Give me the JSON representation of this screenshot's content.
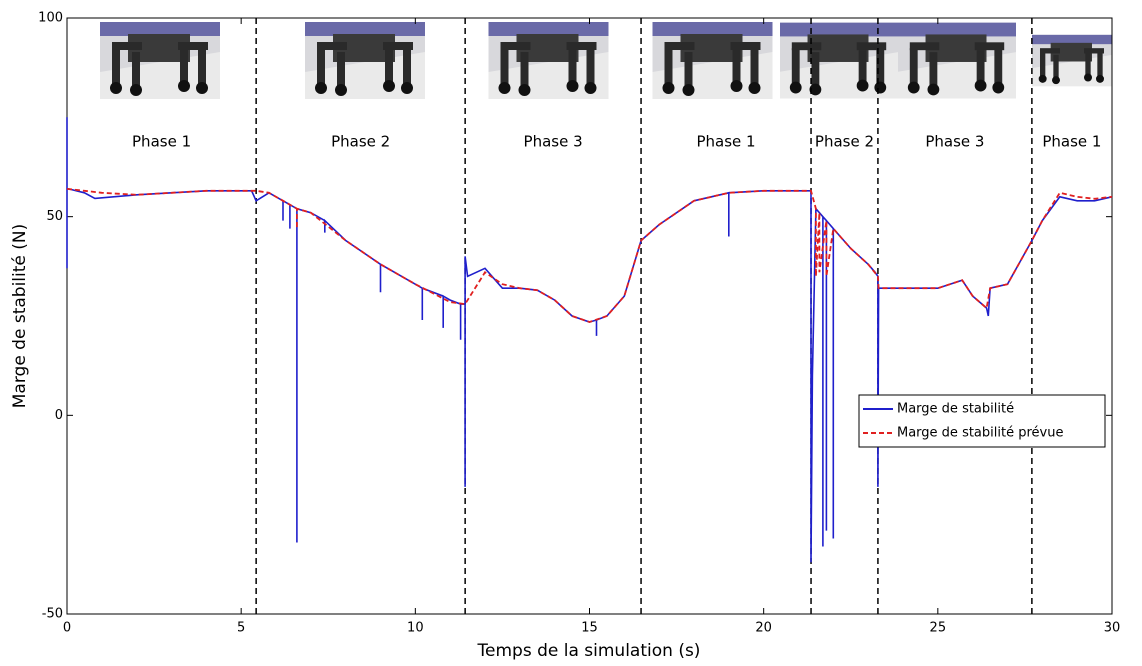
{
  "chart_data": {
    "type": "line",
    "xlabel": "Temps de la simulation (s)",
    "ylabel": "Marge de stabilité (N)",
    "xlim": [
      0,
      30
    ],
    "ylim": [
      -50,
      100
    ],
    "xticks": [
      0,
      5,
      10,
      15,
      20,
      25,
      30
    ],
    "yticks": [
      -50,
      0,
      50,
      100
    ],
    "legend": "lower right",
    "dividers": [
      5.43,
      11.43,
      16.48,
      21.36,
      23.28,
      27.7
    ],
    "phases": [
      "Phase 1",
      "Phase 2",
      "Phase 3",
      "Phase 1",
      "Phase 2",
      "Phase 3",
      "Phase 1"
    ],
    "series": [
      {
        "name": "Marge de stabilité",
        "color": "#1f1fcc",
        "style": "solid",
        "x": [
          0,
          0,
          0,
          0.05,
          0.5,
          0.8,
          2,
          3,
          4,
          5.3,
          5.43,
          5.8,
          6,
          6.2,
          6.2,
          6.2,
          6.4,
          6.4,
          6.4,
          6.6,
          6.6,
          6.6,
          7,
          7.4,
          7.4,
          7.4,
          8,
          9,
          9,
          9,
          10,
          10.2,
          10.2,
          10.2,
          10.8,
          10.8,
          10.8,
          11,
          11.3,
          11.3,
          11.3,
          11.43,
          11.43,
          11.43,
          11.5,
          12,
          12.5,
          13,
          13.5,
          14,
          14.5,
          15,
          15.2,
          15.2,
          15.2,
          15.5,
          16,
          16.48,
          17,
          18,
          19,
          19,
          19,
          20,
          21.3,
          21.36,
          21.36,
          21.4,
          21.5,
          21.7,
          21.7,
          21.7,
          21.8,
          21.8,
          21.8,
          22,
          22,
          22,
          22.5,
          23,
          23.2,
          23.28,
          23.28,
          23.3,
          24,
          25,
          25.7,
          26,
          26.4,
          26.45,
          26.5,
          27,
          27.7,
          28,
          28.5,
          29,
          29.5,
          30
        ],
        "values": [
          37,
          75,
          57,
          57,
          56,
          54.6,
          55.5,
          56,
          56.5,
          56.5,
          54,
          56,
          55,
          54,
          49,
          54,
          53,
          47,
          53,
          52,
          -32,
          52,
          51,
          49,
          46,
          49,
          44,
          38,
          31,
          38,
          33,
          32,
          24,
          32,
          30,
          22,
          30,
          29,
          28,
          19,
          28,
          28,
          -18,
          40,
          35,
          37,
          32,
          32,
          31.5,
          29,
          25,
          23.5,
          24,
          20,
          24,
          25,
          30,
          44,
          48,
          54,
          56,
          45,
          56,
          56.5,
          56.5,
          56.5,
          -37,
          10,
          52,
          50,
          -33,
          50,
          49,
          -29,
          49,
          47,
          -31,
          47,
          42,
          38,
          36,
          35,
          -18,
          32,
          32,
          32,
          34,
          30,
          27,
          25,
          32,
          33,
          44,
          49,
          55,
          54,
          54,
          55
        ]
      },
      {
        "name": "Marge de stabilité prévue",
        "color": "#e02020",
        "style": "dashed",
        "x": [
          0,
          0.5,
          1,
          2,
          3,
          4,
          5.43,
          5.8,
          6.6,
          6.6,
          6.6,
          7,
          8,
          9,
          10,
          11,
          11.43,
          12,
          12.5,
          13,
          13.5,
          14,
          14.5,
          15,
          15.5,
          16,
          16.48,
          17,
          18,
          19,
          20,
          21.36,
          21.5,
          21.5,
          21.6,
          21.6,
          21.8,
          21.8,
          22,
          22.5,
          23,
          23.28,
          23.3,
          24,
          25,
          25.7,
          26,
          26.4,
          26.5,
          27,
          27.7,
          28,
          28.5,
          29,
          29.5,
          30
        ],
        "values": [
          57,
          56.5,
          56,
          55.5,
          56,
          56.5,
          56.5,
          56,
          52,
          47,
          52,
          51,
          44,
          38,
          33,
          28.5,
          28,
          36,
          33,
          32,
          31.5,
          29,
          25,
          23.5,
          25,
          30,
          44,
          48,
          54,
          56,
          56.5,
          56.5,
          52,
          35,
          51,
          36,
          49,
          35,
          47,
          42,
          38,
          35,
          32,
          32,
          32,
          34,
          30,
          27,
          32,
          33,
          44,
          49,
          56,
          55,
          54.5,
          55
        ]
      }
    ]
  }
}
